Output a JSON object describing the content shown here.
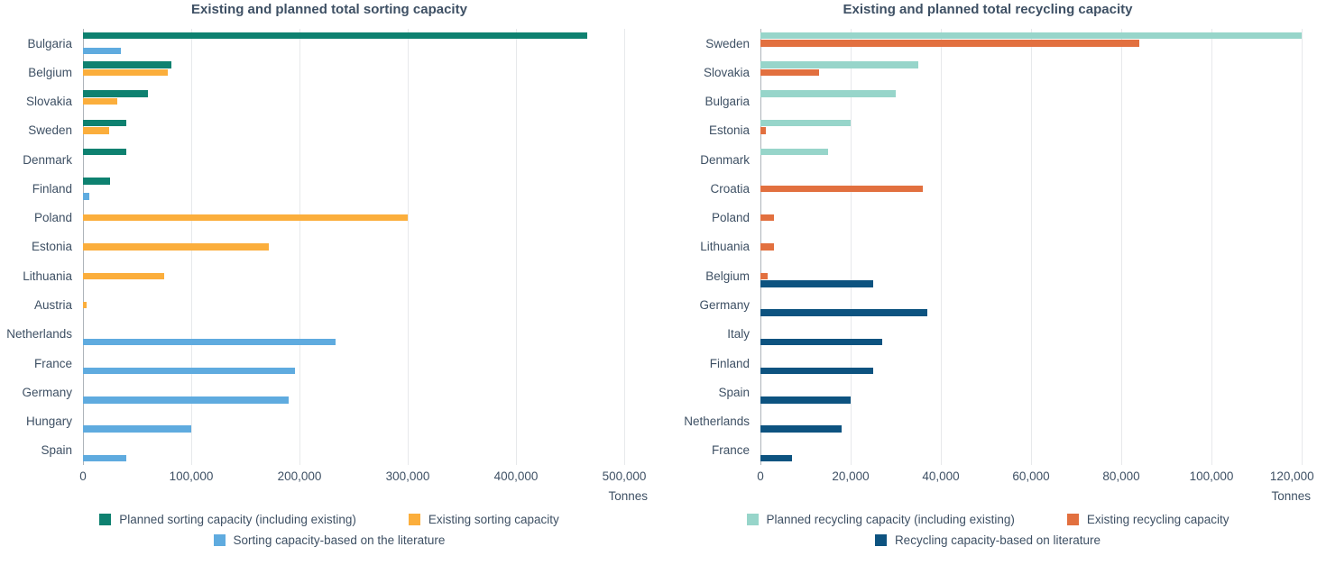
{
  "style": {
    "text_color": "#3E5064",
    "grid_color": "#E7E9EB",
    "axis_color": "#AEB4BA",
    "background": "#FFFFFF"
  },
  "chart_data": [
    {
      "type": "bar",
      "orientation": "horizontal",
      "title": "Existing and planned total sorting capacity",
      "xlabel_unit": "Tonnes",
      "xlim": [
        0,
        500000
      ],
      "x_ticks": [
        "0",
        "100,000",
        "200,000",
        "300,000",
        "400,000",
        "500,000"
      ],
      "grid": "vertical",
      "legend_position": "bottom",
      "categories": [
        "Bulgaria",
        "Belgium",
        "Slovakia",
        "Sweden",
        "Denmark",
        "Finland",
        "Poland",
        "Estonia",
        "Lithuania",
        "Austria",
        "Netherlands",
        "France",
        "Germany",
        "Hungary",
        "Spain"
      ],
      "series": [
        {
          "name": "Planned sorting capacity (including existing)",
          "color": "#0E8170",
          "values": [
            466000,
            82000,
            60000,
            40000,
            40000,
            25000,
            0,
            0,
            0,
            0,
            0,
            0,
            0,
            0,
            0
          ]
        },
        {
          "name": "Existing sorting capacity",
          "color": "#FBAE3C",
          "values": [
            0,
            78000,
            32000,
            24000,
            0,
            0,
            300000,
            172000,
            75000,
            3000,
            0,
            0,
            0,
            0,
            0
          ]
        },
        {
          "name": "Sorting capacity-based on the literature",
          "color": "#5FABDF",
          "values": [
            35000,
            0,
            0,
            0,
            0,
            6000,
            0,
            0,
            0,
            0,
            233000,
            196000,
            190000,
            100000,
            40000
          ]
        }
      ]
    },
    {
      "type": "bar",
      "orientation": "horizontal",
      "title": "Existing and planned total recycling capacity",
      "xlabel_unit": "Tonnes",
      "xlim": [
        0,
        120000
      ],
      "x_ticks": [
        "0",
        "20,000",
        "40,000",
        "60,000",
        "80,000",
        "100,000",
        "120,000"
      ],
      "grid": "vertical",
      "legend_position": "bottom",
      "categories": [
        "Sweden",
        "Slovakia",
        "Bulgaria",
        "Estonia",
        "Denmark",
        "Croatia",
        "Poland",
        "Lithuania",
        "Belgium",
        "Germany",
        "Italy",
        "Finland",
        "Spain",
        "Netherlands",
        "France"
      ],
      "series": [
        {
          "name": "Planned recycling capacity (including existing)",
          "color": "#97D5CA",
          "values": [
            120000,
            35000,
            30000,
            20000,
            15000,
            0,
            0,
            0,
            0,
            0,
            0,
            0,
            0,
            0,
            0
          ]
        },
        {
          "name": "Existing recycling capacity",
          "color": "#E2703F",
          "values": [
            84000,
            13000,
            0,
            1200,
            0,
            36000,
            3000,
            3000,
            1500,
            0,
            0,
            0,
            0,
            0,
            0
          ]
        },
        {
          "name": "Recycling capacity-based on literature",
          "color": "#0D5380",
          "values": [
            0,
            0,
            0,
            0,
            0,
            0,
            0,
            0,
            25000,
            37000,
            27000,
            25000,
            20000,
            18000,
            7000
          ]
        }
      ]
    }
  ]
}
